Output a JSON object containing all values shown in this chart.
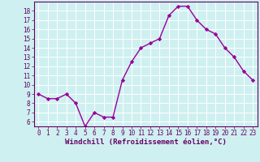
{
  "x": [
    0,
    1,
    2,
    3,
    4,
    5,
    6,
    7,
    8,
    9,
    10,
    11,
    12,
    13,
    14,
    15,
    16,
    17,
    18,
    19,
    20,
    21,
    22,
    23
  ],
  "y": [
    9.0,
    8.5,
    8.5,
    9.0,
    8.0,
    5.5,
    7.0,
    6.5,
    6.5,
    10.5,
    12.5,
    14.0,
    14.5,
    15.0,
    17.5,
    18.5,
    18.5,
    17.0,
    16.0,
    15.5,
    14.0,
    13.0,
    11.5,
    10.5
  ],
  "line_color": "#990099",
  "marker": "D",
  "markersize": 2.2,
  "bg_color": "#cff0f0",
  "grid_color": "#ffffff",
  "xlabel": "Windchill (Refroidissement éolien,°C)",
  "tick_color": "#660066",
  "ylim_min": 5.5,
  "ylim_max": 19.0,
  "xlim_min": -0.5,
  "xlim_max": 23.5,
  "yticks": [
    6,
    7,
    8,
    9,
    10,
    11,
    12,
    13,
    14,
    15,
    16,
    17,
    18
  ],
  "xticks": [
    0,
    1,
    2,
    3,
    4,
    5,
    6,
    7,
    8,
    9,
    10,
    11,
    12,
    13,
    14,
    15,
    16,
    17,
    18,
    19,
    20,
    21,
    22,
    23
  ],
  "linewidth": 1.0,
  "tick_fontsize": 5.5,
  "xlabel_fontsize": 6.5
}
